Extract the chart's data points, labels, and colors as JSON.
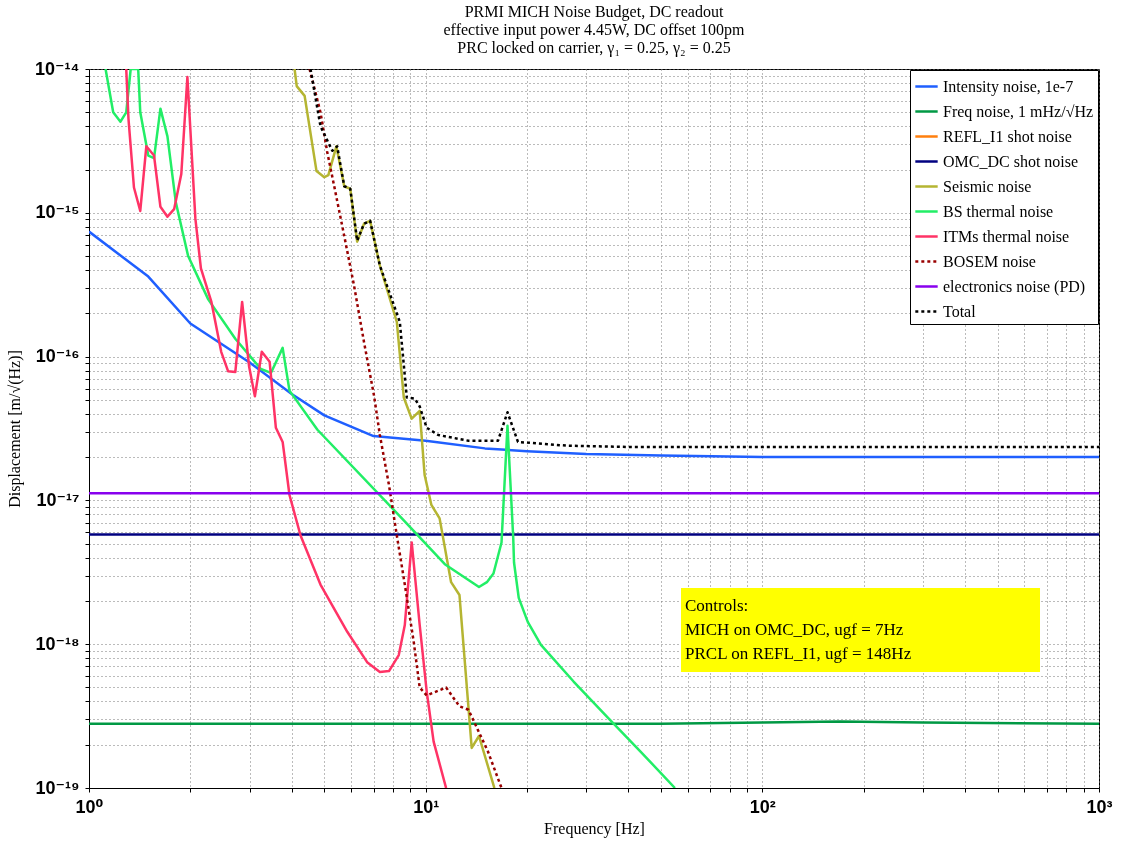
{
  "chart_data": {
    "type": "line",
    "title": "PRMI MICH Noise Budget, DC readout",
    "subtitle": "effective input power 4.45W, DC offset 100pm\nPRC locked on carrier, γ₁ = 0.25, γ₂ = 0.25",
    "xlabel": "Frequency [Hz]",
    "ylabel": "Displacement [m/√(Hz)]",
    "log": "xy",
    "grid": true,
    "legend": "top right",
    "xlim": [
      1,
      1000
    ],
    "ylim": [
      1e-19,
      1e-14
    ],
    "xticks": [
      {
        "value": 1,
        "label": "10⁰"
      },
      {
        "value": 2,
        "label": null
      },
      {
        "value": 3,
        "label": null
      },
      {
        "value": 4,
        "label": null
      },
      {
        "value": 5,
        "label": null
      },
      {
        "value": 6,
        "label": null
      },
      {
        "value": 7,
        "label": null
      },
      {
        "value": 8,
        "label": null
      },
      {
        "value": 9,
        "label": null
      },
      {
        "value": 10,
        "label": "10¹"
      },
      {
        "value": 20,
        "label": null
      },
      {
        "value": 30,
        "label": null
      },
      {
        "value": 40,
        "label": null
      },
      {
        "value": 50,
        "label": null
      },
      {
        "value": 60,
        "label": null
      },
      {
        "value": 70,
        "label": null
      },
      {
        "value": 80,
        "label": null
      },
      {
        "value": 90,
        "label": null
      },
      {
        "value": 100,
        "label": "10²"
      },
      {
        "value": 200,
        "label": null
      },
      {
        "value": 300,
        "label": null
      },
      {
        "value": 400,
        "label": null
      },
      {
        "value": 500,
        "label": null
      },
      {
        "value": 600,
        "label": null
      },
      {
        "value": 700,
        "label": null
      },
      {
        "value": 800,
        "label": null
      },
      {
        "value": 900,
        "label": null
      },
      {
        "value": 1000,
        "label": "10³"
      }
    ],
    "yticks": [
      {
        "value": 1e-19,
        "label": "10⁻¹⁹"
      },
      {
        "value": 2e-19,
        "label": null
      },
      {
        "value": 3e-19,
        "label": null
      },
      {
        "value": 4e-19,
        "label": null
      },
      {
        "value": 5e-19,
        "label": null
      },
      {
        "value": 6e-19,
        "label": null
      },
      {
        "value": 7e-19,
        "label": null
      },
      {
        "value": 8e-19,
        "label": null
      },
      {
        "value": 9e-19,
        "label": null
      },
      {
        "value": 1e-18,
        "label": "10⁻¹⁸"
      },
      {
        "value": 2e-18,
        "label": null
      },
      {
        "value": 3e-18,
        "label": null
      },
      {
        "value": 4e-18,
        "label": null
      },
      {
        "value": 5e-18,
        "label": null
      },
      {
        "value": 6e-18,
        "label": null
      },
      {
        "value": 7e-18,
        "label": null
      },
      {
        "value": 8e-18,
        "label": null
      },
      {
        "value": 9e-18,
        "label": null
      },
      {
        "value": 1e-17,
        "label": "10⁻¹⁷"
      },
      {
        "value": 2e-17,
        "label": null
      },
      {
        "value": 3e-17,
        "label": null
      },
      {
        "value": 4e-17,
        "label": null
      },
      {
        "value": 5e-17,
        "label": null
      },
      {
        "value": 6e-17,
        "label": null
      },
      {
        "value": 7e-17,
        "label": null
      },
      {
        "value": 8e-17,
        "label": null
      },
      {
        "value": 9e-17,
        "label": null
      },
      {
        "value": 1e-16,
        "label": "10⁻¹⁶"
      },
      {
        "value": 2e-16,
        "label": null
      },
      {
        "value": 3e-16,
        "label": null
      },
      {
        "value": 4e-16,
        "label": null
      },
      {
        "value": 5e-16,
        "label": null
      },
      {
        "value": 6e-16,
        "label": null
      },
      {
        "value": 7e-16,
        "label": null
      },
      {
        "value": 8e-16,
        "label": null
      },
      {
        "value": 9e-16,
        "label": null
      },
      {
        "value": 1e-15,
        "label": "10⁻¹⁵"
      },
      {
        "value": 2e-15,
        "label": null
      },
      {
        "value": 3e-15,
        "label": null
      },
      {
        "value": 4e-15,
        "label": null
      },
      {
        "value": 5e-15,
        "label": null
      },
      {
        "value": 6e-15,
        "label": null
      },
      {
        "value": 7e-15,
        "label": null
      },
      {
        "value": 8e-15,
        "label": null
      },
      {
        "value": 9e-15,
        "label": null
      },
      {
        "value": 1e-14,
        "label": "10⁻¹⁴"
      }
    ],
    "annotations": [
      "Controls:",
      "MICH on OMC_DC, ugf = 7Hz",
      "PRCL on REFL_I1, ugf = 148Hz"
    ],
    "series": [
      {
        "name": "Intensity noise, 1e-7",
        "color": "#1f5fff",
        "x": [
          1,
          1.5,
          2,
          3,
          4,
          5,
          7,
          10,
          15,
          20,
          30,
          50,
          100,
          200,
          500,
          1000
        ],
        "values": [
          7.4e-16,
          3.6e-16,
          1.7e-16,
          9.1e-17,
          5.5e-17,
          3.9e-17,
          2.8e-17,
          2.6e-17,
          2.3e-17,
          2.2e-17,
          2.1e-17,
          2.05e-17,
          2e-17,
          2e-17,
          2e-17,
          2e-17
        ]
      },
      {
        "name": "Freq noise, 1 mHz/√Hz",
        "color": "#009944",
        "x": [
          1,
          10,
          50,
          100,
          170,
          300,
          1000
        ],
        "values": [
          2.8e-19,
          2.8e-19,
          2.8e-19,
          2.85e-19,
          2.9e-19,
          2.85e-19,
          2.8e-19
        ]
      },
      {
        "name": "REFL_I1 shot noise",
        "color": "#ff7f0e"
      },
      {
        "name": "OMC_DC shot noise",
        "color": "#000080",
        "x": [
          1,
          1000
        ],
        "values": [
          5.8e-18,
          5.8e-18
        ]
      },
      {
        "name": "Seismic noise",
        "color": "#b5b532",
        "x": [
          4.08,
          4.14,
          4.37,
          4.74,
          5.0,
          5.14,
          5.43,
          5.73,
          5.97,
          6.26,
          6.56,
          6.84,
          7.31,
          8.21,
          8.61,
          9.09,
          9.6,
          9.93,
          10.4,
          11.0,
          11.9,
          12.6,
          13.7,
          14.4,
          16.0
        ],
        "values": [
          1e-14,
          7.6e-15,
          6.5e-15,
          1.95e-15,
          1.77e-15,
          1.83e-15,
          2.9e-15,
          1.53e-15,
          1.47e-15,
          6.3e-16,
          8.4e-16,
          8.8e-16,
          4.3e-16,
          1.74e-16,
          5.2e-17,
          3.7e-17,
          4.2e-17,
          1.5e-17,
          9.3e-18,
          7.5e-18,
          2.7e-18,
          2.2e-18,
          1.9e-19,
          2.3e-19,
          1e-19
        ]
      },
      {
        "name": "BS thermal noise",
        "color": "#22ee66",
        "x": [
          1.12,
          1.18,
          1.24,
          1.29,
          1.33,
          1.4,
          1.42,
          1.5,
          1.56,
          1.63,
          1.71,
          1.81,
          1.97,
          2.26,
          2.72,
          3.24,
          3.47,
          3.76,
          3.94,
          4.77,
          8.5,
          11.4,
          14.4,
          15.2,
          15.9,
          16.8,
          17.5,
          18.2,
          18.3,
          18.9,
          20.1,
          22.0,
          27.5,
          34.7,
          43.4,
          55.0
        ],
        "values": [
          1e-14,
          5e-15,
          4.3e-15,
          5e-15,
          1e-14,
          1e-14,
          5e-15,
          2.5e-15,
          2.4e-15,
          5.3e-15,
          3.4e-15,
          1.19e-15,
          5e-16,
          2.5e-16,
          1.33e-16,
          8.2e-17,
          7.7e-17,
          1.15e-16,
          5.8e-17,
          3.1e-17,
          7.5e-18,
          3.6e-18,
          2.5e-18,
          2.7e-18,
          3.1e-18,
          5.1e-18,
          3.3e-17,
          5.5e-18,
          3.7e-18,
          2.1e-18,
          1.43e-18,
          9.9e-19,
          5.5e-19,
          3.1e-19,
          1.8e-19,
          1e-19
        ]
      },
      {
        "name": "ITMs thermal noise",
        "color": "#ff3366",
        "x": [
          1.29,
          1.31,
          1.36,
          1.42,
          1.48,
          1.56,
          1.63,
          1.71,
          1.79,
          1.88,
          1.96,
          2.07,
          2.15,
          2.31,
          2.47,
          2.59,
          2.72,
          2.85,
          2.99,
          3.11,
          3.26,
          3.44,
          3.59,
          3.76,
          3.94,
          4.25,
          4.87,
          5.85,
          6.7,
          7.31,
          7.78,
          8.32,
          8.67,
          9.09,
          9.6,
          10.07,
          10.56,
          11.5
        ],
        "values": [
          1e-14,
          4.5e-15,
          1.5e-15,
          1.03e-15,
          2.9e-15,
          2.5e-15,
          1.1e-15,
          9.4e-16,
          1.06e-15,
          1.86e-15,
          8.8e-15,
          9.1e-16,
          4.1e-16,
          2.4e-16,
          1.08e-16,
          7.9e-17,
          7.8e-17,
          2.4e-16,
          8.5e-17,
          5.3e-17,
          1.08e-16,
          9.2e-17,
          3.2e-17,
          2.55e-17,
          1.09e-17,
          5.7e-18,
          2.6e-18,
          1.22e-18,
          7.5e-19,
          6.4e-19,
          6.5e-19,
          8.4e-19,
          1.36e-18,
          5.1e-18,
          1.36e-18,
          4.7e-19,
          2.1e-19,
          1e-19
        ]
      },
      {
        "name": "BOSEM noise",
        "color": "#990000",
        "line_style": "dotted",
        "x": [
          4.52,
          4.87,
          5.1,
          5.35,
          5.73,
          6.13,
          6.56,
          7.03,
          7.31,
          7.78,
          8.21,
          8.67,
          9.22,
          9.6,
          10.07,
          11.5,
          12.6,
          13.4,
          15.3,
          16.8
        ],
        "values": [
          1e-14,
          5e-15,
          2.65e-15,
          1.53e-15,
          6.9e-16,
          3.1e-16,
          1.26e-16,
          5.3e-17,
          2.85e-17,
          1.28e-17,
          5.7e-18,
          2.6e-18,
          1.03e-18,
          5e-19,
          4.4e-19,
          5e-19,
          3.7e-19,
          3.5e-19,
          1.8e-19,
          1e-19
        ]
      },
      {
        "name": "electronics noise (PD)",
        "color": "#8800ee",
        "x": [
          1,
          1000
        ],
        "values": [
          1.12e-17,
          1.12e-17
        ]
      },
      {
        "name": "Total",
        "color": "#000000",
        "line_style": "dotted",
        "x": [
          4.55,
          4.87,
          5.28,
          5.46,
          5.73,
          5.97,
          6.26,
          6.56,
          6.84,
          7.31,
          8.38,
          8.79,
          9.28,
          9.6,
          10.07,
          10.9,
          13.4,
          16.4,
          17.5,
          18.8,
          26.4,
          41.4,
          91.6,
          1000
        ],
        "values": [
          1e-14,
          4e-15,
          2.7e-15,
          2.9e-15,
          1.53e-15,
          1.47e-15,
          6.4e-16,
          8.4e-16,
          8.8e-16,
          4.3e-16,
          1.74e-16,
          5.2e-17,
          5.1e-17,
          4.5e-17,
          3.2e-17,
          2.85e-17,
          2.6e-17,
          2.6e-17,
          4.1e-17,
          2.55e-17,
          2.4e-17,
          2.35e-17,
          2.35e-17,
          2.35e-17
        ]
      }
    ]
  }
}
